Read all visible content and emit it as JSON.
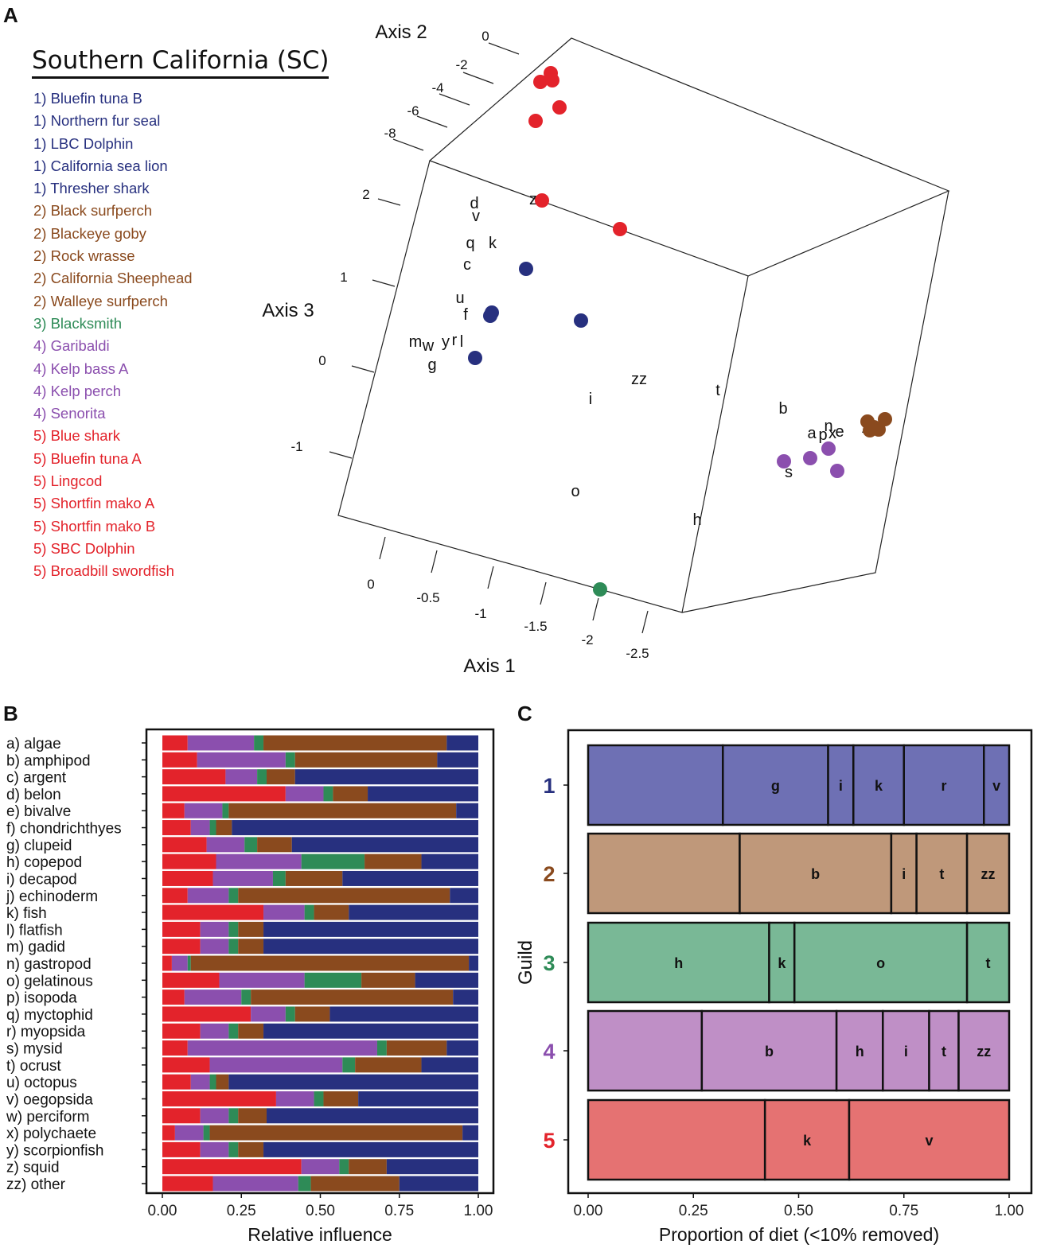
{
  "panel_labels": {
    "a": "A",
    "b": "B",
    "c": "C"
  },
  "legend": {
    "title": "Southern California (SC)",
    "guild_colors": {
      "1": "#27307f",
      "2": "#8a4a1e",
      "3": "#2e8b57",
      "4": "#8b4fae",
      "5": "#e3232b"
    },
    "items": [
      {
        "label": "1) Bluefin tuna B",
        "guild": 1
      },
      {
        "label": "1) Northern fur seal",
        "guild": 1
      },
      {
        "label": "1) LBC Dolphin",
        "guild": 1
      },
      {
        "label": "1) California sea lion",
        "guild": 1
      },
      {
        "label": "1) Thresher shark",
        "guild": 1
      },
      {
        "label": "2) Black surfperch",
        "guild": 2
      },
      {
        "label": "2) Blackeye goby",
        "guild": 2
      },
      {
        "label": "2) Rock wrasse",
        "guild": 2
      },
      {
        "label": "2) California Sheephead",
        "guild": 2
      },
      {
        "label": "2) Walleye surfperch",
        "guild": 2
      },
      {
        "label": "3) Blacksmith",
        "guild": 3
      },
      {
        "label": "4) Garibaldi",
        "guild": 4
      },
      {
        "label": "4) Kelp bass A",
        "guild": 4
      },
      {
        "label": "4) Kelp perch",
        "guild": 4
      },
      {
        "label": "4) Senorita",
        "guild": 4
      },
      {
        "label": "5) Blue shark",
        "guild": 5
      },
      {
        "label": "5) Bluefin tuna A",
        "guild": 5
      },
      {
        "label": "5) Lingcod",
        "guild": 5
      },
      {
        "label": "5) Shortfin mako A",
        "guild": 5
      },
      {
        "label": "5) Shortfin mako B",
        "guild": 5
      },
      {
        "label": "5) SBC Dolphin",
        "guild": 5
      },
      {
        "label": "5) Broadbill swordfish",
        "guild": 5
      }
    ]
  },
  "chart_data": [
    {
      "panel": "A",
      "type": "scatter",
      "projection": "3d",
      "axis_labels": {
        "x": "Axis 1",
        "y": "Axis 2",
        "z": "Axis 3"
      },
      "axis1_ticks": [
        "0",
        "-0.5",
        "-1",
        "-1.5",
        "-2",
        "-2.5"
      ],
      "axis2_ticks": [
        "0",
        "-2",
        "-4",
        "-6",
        "-8"
      ],
      "axis3_ticks": [
        "2",
        "1",
        "0",
        "-1"
      ],
      "diet_labels": [
        "d",
        "v",
        "q",
        "k",
        "c",
        "z",
        "u",
        "f",
        "m",
        "w",
        "y",
        "r",
        "l",
        "g",
        "zz",
        "i",
        "t",
        "b",
        "a",
        "p",
        "x",
        "n",
        "e",
        "j",
        "s",
        "o",
        "h"
      ],
      "guild_points": {
        "1": 5,
        "2": 5,
        "3": 1,
        "4": 4,
        "5": 7
      }
    },
    {
      "panel": "B",
      "type": "bar",
      "orientation": "horizontal",
      "stacked": true,
      "xlabel": "Relative influence",
      "xlim": [
        0,
        1
      ],
      "xticks": [
        "0.00",
        "0.25",
        "0.50",
        "0.75",
        "1.00"
      ],
      "series_colors": [
        "#e3232b",
        "#8b4fae",
        "#2e8b57",
        "#8a4a1e",
        "#27307f"
      ],
      "categories": [
        "a) algae",
        "b) amphipod",
        "c) argent",
        "d) belon",
        "e) bivalve",
        "f) chondrichthyes",
        "g) clupeid",
        "h) copepod",
        "i) decapod",
        "j) echinoderm",
        "k) fish",
        "l) flatfish",
        "m) gadid",
        "n) gastropod",
        "o) gelatinous",
        "p) isopoda",
        "q) myctophid",
        "r) myopsida",
        "s) mysid",
        "t) ocrust",
        "u) octopus",
        "v) oegopsida",
        "w) perciform",
        "x) polychaete",
        "y) scorpionfish",
        "z) squid",
        "zz) other"
      ],
      "series": [
        {
          "name": "guild 5",
          "values": [
            0.08,
            0.11,
            0.2,
            0.39,
            0.07,
            0.09,
            0.14,
            0.17,
            0.16,
            0.08,
            0.32,
            0.12,
            0.12,
            0.03,
            0.18,
            0.07,
            0.28,
            0.12,
            0.08,
            0.15,
            0.09,
            0.36,
            0.12,
            0.04,
            0.12,
            0.44,
            0.16
          ]
        },
        {
          "name": "guild 4",
          "values": [
            0.21,
            0.28,
            0.1,
            0.12,
            0.12,
            0.06,
            0.12,
            0.27,
            0.19,
            0.13,
            0.13,
            0.09,
            0.09,
            0.05,
            0.27,
            0.18,
            0.11,
            0.09,
            0.6,
            0.42,
            0.06,
            0.12,
            0.09,
            0.09,
            0.09,
            0.12,
            0.27
          ]
        },
        {
          "name": "guild 3",
          "values": [
            0.03,
            0.03,
            0.03,
            0.03,
            0.02,
            0.02,
            0.04,
            0.2,
            0.04,
            0.03,
            0.03,
            0.03,
            0.03,
            0.01,
            0.18,
            0.03,
            0.03,
            0.03,
            0.03,
            0.04,
            0.02,
            0.03,
            0.03,
            0.02,
            0.03,
            0.03,
            0.04
          ]
        },
        {
          "name": "guild 2",
          "values": [
            0.58,
            0.45,
            0.09,
            0.11,
            0.72,
            0.05,
            0.11,
            0.18,
            0.18,
            0.67,
            0.11,
            0.08,
            0.08,
            0.88,
            0.17,
            0.64,
            0.11,
            0.08,
            0.19,
            0.21,
            0.04,
            0.11,
            0.09,
            0.8,
            0.08,
            0.12,
            0.28
          ]
        },
        {
          "name": "guild 1",
          "values": [
            0.1,
            0.13,
            0.58,
            0.35,
            0.07,
            0.78,
            0.59,
            0.18,
            0.43,
            0.09,
            0.41,
            0.68,
            0.68,
            0.03,
            0.2,
            0.08,
            0.47,
            0.68,
            0.1,
            0.18,
            0.79,
            0.38,
            0.67,
            0.05,
            0.68,
            0.29,
            0.25
          ]
        }
      ]
    },
    {
      "panel": "C",
      "type": "bar",
      "orientation": "horizontal",
      "stacked": true,
      "xlabel": "Proportion of diet (<10% removed)",
      "ylabel": "Guild",
      "xlim": [
        0,
        1
      ],
      "xticks": [
        "0.00",
        "0.25",
        "0.50",
        "0.75",
        "1.00"
      ],
      "guilds": [
        {
          "name": "1",
          "fill": "#6e70b4",
          "segments": [
            {
              "label": "",
              "value": 0.32
            },
            {
              "label": "g",
              "value": 0.25
            },
            {
              "label": "i",
              "value": 0.06
            },
            {
              "label": "k",
              "value": 0.12
            },
            {
              "label": "r",
              "value": 0.19
            },
            {
              "label": "v",
              "value": 0.06
            }
          ]
        },
        {
          "name": "2",
          "fill": "#bf987a",
          "segments": [
            {
              "label": "",
              "value": 0.36
            },
            {
              "label": "b",
              "value": 0.36
            },
            {
              "label": "i",
              "value": 0.06
            },
            {
              "label": "t",
              "value": 0.12
            },
            {
              "label": "zz",
              "value": 0.1
            }
          ]
        },
        {
          "name": "3",
          "fill": "#79b896",
          "segments": [
            {
              "label": "h",
              "value": 0.43
            },
            {
              "label": "k",
              "value": 0.06
            },
            {
              "label": "o",
              "value": 0.41
            },
            {
              "label": "t",
              "value": 0.1
            }
          ]
        },
        {
          "name": "4",
          "fill": "#bf8fc6",
          "segments": [
            {
              "label": "",
              "value": 0.27
            },
            {
              "label": "b",
              "value": 0.32
            },
            {
              "label": "h",
              "value": 0.11
            },
            {
              "label": "i",
              "value": 0.11
            },
            {
              "label": "t",
              "value": 0.07
            },
            {
              "label": "zz",
              "value": 0.12
            }
          ]
        },
        {
          "name": "5",
          "fill": "#e57272",
          "segments": [
            {
              "label": "",
              "value": 0.42
            },
            {
              "label": "k",
              "value": 0.2
            },
            {
              "label": "v",
              "value": 0.38
            }
          ]
        }
      ]
    }
  ]
}
